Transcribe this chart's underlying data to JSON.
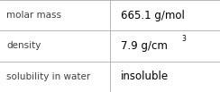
{
  "rows": [
    {
      "label": "molar mass",
      "value": "665.1 g/mol",
      "superscript": null
    },
    {
      "label": "density",
      "value": "7.9 g/cm",
      "superscript": "3"
    },
    {
      "label": "solubility in water",
      "value": "insoluble",
      "superscript": null
    }
  ],
  "col_split": 0.5,
  "background_color": "#ffffff",
  "border_color": "#aaaaaa",
  "label_color": "#404040",
  "value_color": "#000000",
  "label_fontsize": 7.5,
  "value_fontsize": 8.5,
  "superscript_fontsize": 5.5,
  "figwidth": 2.44,
  "figheight": 1.03,
  "dpi": 100
}
